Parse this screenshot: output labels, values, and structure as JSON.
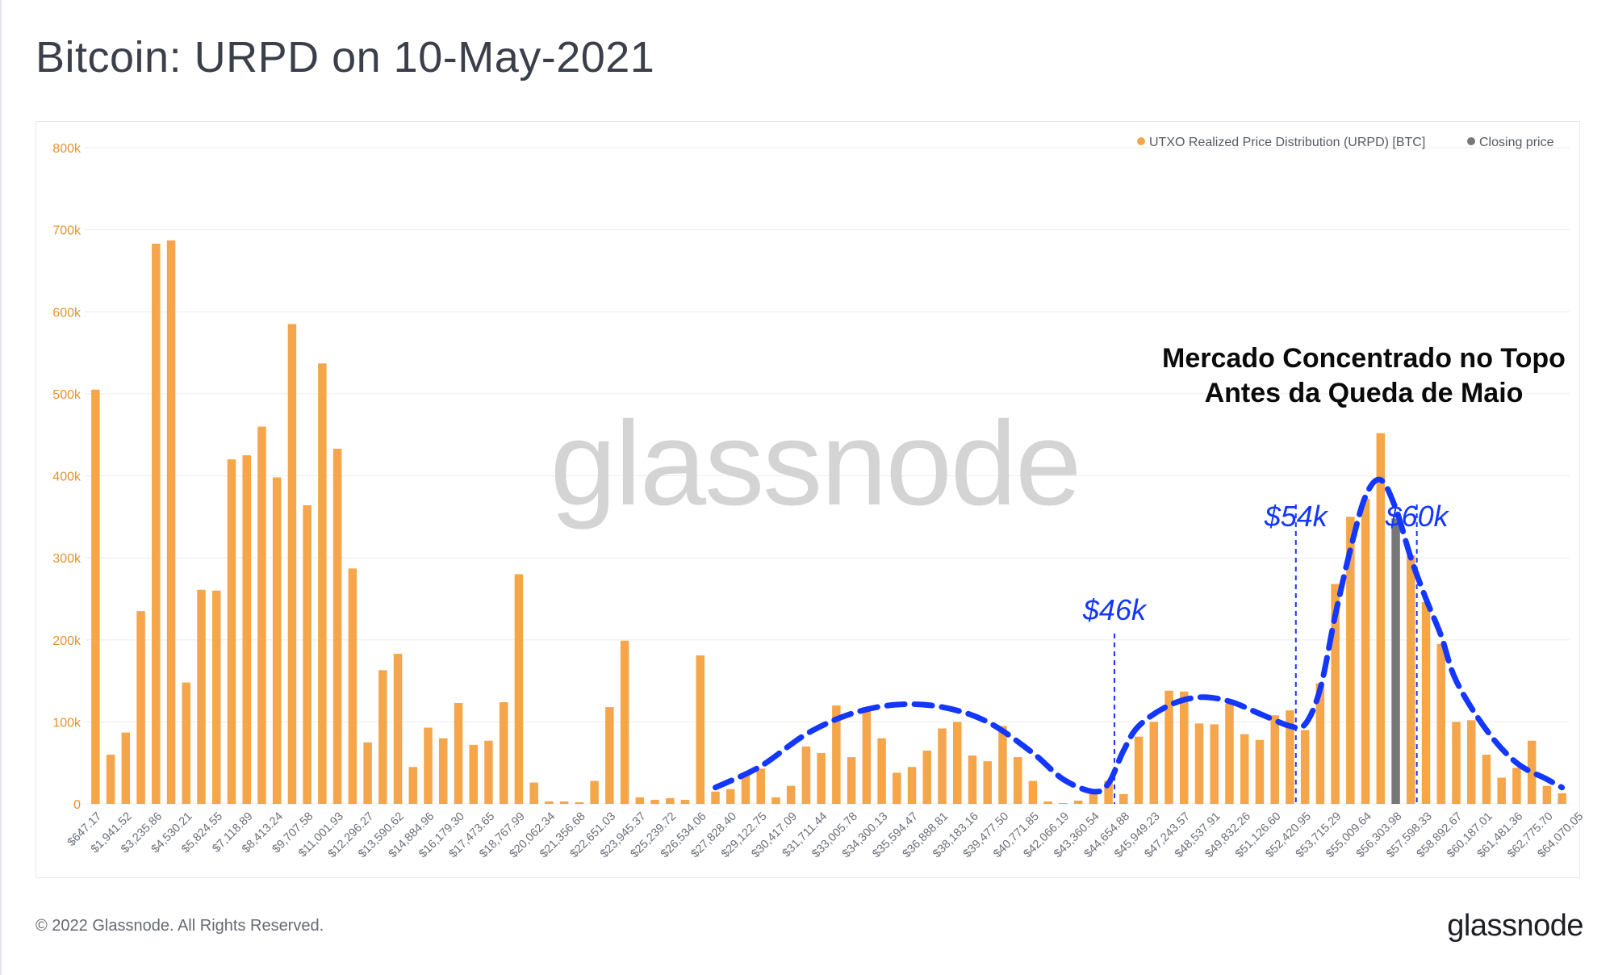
{
  "title": "Bitcoin: URPD on 10-May-2021",
  "footer": {
    "copyright": "© 2022 Glassnode. All Rights Reserved.",
    "logo_text": "glassnode"
  },
  "watermark": "glassnode",
  "legend": [
    {
      "label": "UTXO Realized Price Distribution (URPD) [BTC]",
      "color": "#f5a54a"
    },
    {
      "label": "Closing price",
      "color": "#777777"
    }
  ],
  "annotation": {
    "headline": [
      "Mercado Concentrado no Topo",
      "Antes da Queda de Maio"
    ],
    "markers": [
      {
        "label": "$46k",
        "bin": 68
      },
      {
        "label": "$54k",
        "bin": 80
      },
      {
        "label": "$60k",
        "bin": 88
      }
    ],
    "curve_color": "#1337ff"
  },
  "colors": {
    "bar": "#f5a54a",
    "closing_bar": "#777777",
    "grid": "#eeeeee",
    "axis_text": "#e8912a",
    "x_tick_text": "#6b6f78"
  },
  "chart_data": {
    "type": "bar",
    "title": "Bitcoin: URPD on 10-May-2021",
    "ylim": [
      0,
      800000
    ],
    "yticks": [
      "0",
      "100k",
      "200k",
      "300k",
      "400k",
      "500k",
      "600k",
      "700k",
      "800k"
    ],
    "grid": true,
    "legend_position": "top-right",
    "closing_price_bin": 86,
    "x_tick_labels": [
      "$647.17",
      "$1,941.52",
      "$3,235.86",
      "$4,530.21",
      "$5,824.55",
      "$7,118.89",
      "$8,413.24",
      "$9,707.58",
      "$11,001.93",
      "$12,296.27",
      "$13,590.62",
      "$14,884.96",
      "$16,179.30",
      "$17,473.65",
      "$18,767.99",
      "$20,062.34",
      "$21,356.68",
      "$22,651.03",
      "$23,945.37",
      "$25,239.72",
      "$26,534.06",
      "$27,828.40",
      "$29,122.75",
      "$30,417.09",
      "$31,711.44",
      "$33,005.78",
      "$34,300.13",
      "$35,594.47",
      "$36,888.81",
      "$38,183.16",
      "$39,477.50",
      "$40,771.85",
      "$42,066.19",
      "$43,360.54",
      "$44,654.88",
      "$45,949.23",
      "$47,243.57",
      "$48,537.91",
      "$49,832.26",
      "$51,126.60",
      "$52,420.95",
      "$53,715.29",
      "$55,009.64",
      "$56,303.98",
      "$57,598.33",
      "$58,892.67",
      "$60,187.01",
      "$61,481.36",
      "$62,775.70",
      "$64,070.05"
    ],
    "values": [
      505000,
      60000,
      87000,
      235000,
      683000,
      687000,
      148000,
      261000,
      260000,
      420000,
      425000,
      460000,
      398000,
      585000,
      364000,
      537000,
      433000,
      287000,
      75000,
      163000,
      183000,
      45000,
      93000,
      80000,
      123000,
      72000,
      77000,
      124000,
      280000,
      26000,
      3000,
      3000,
      2000,
      28000,
      118000,
      199000,
      8000,
      5000,
      7000,
      5000,
      181000,
      15000,
      18000,
      36000,
      43000,
      8000,
      22000,
      70000,
      62000,
      120000,
      57000,
      118000,
      80000,
      38000,
      45000,
      65000,
      92000,
      100000,
      59000,
      52000,
      95000,
      57000,
      28000,
      3000,
      1000,
      4000,
      13000,
      28000,
      12000,
      82000,
      100000,
      138000,
      137000,
      98000,
      97000,
      122000,
      85000,
      78000,
      108000,
      114000,
      90000,
      147000,
      268000,
      350000,
      372000,
      452000,
      348000,
      303000,
      246000,
      195000,
      100000,
      102000,
      60000,
      32000,
      44000,
      77000,
      22000,
      13000
    ]
  }
}
